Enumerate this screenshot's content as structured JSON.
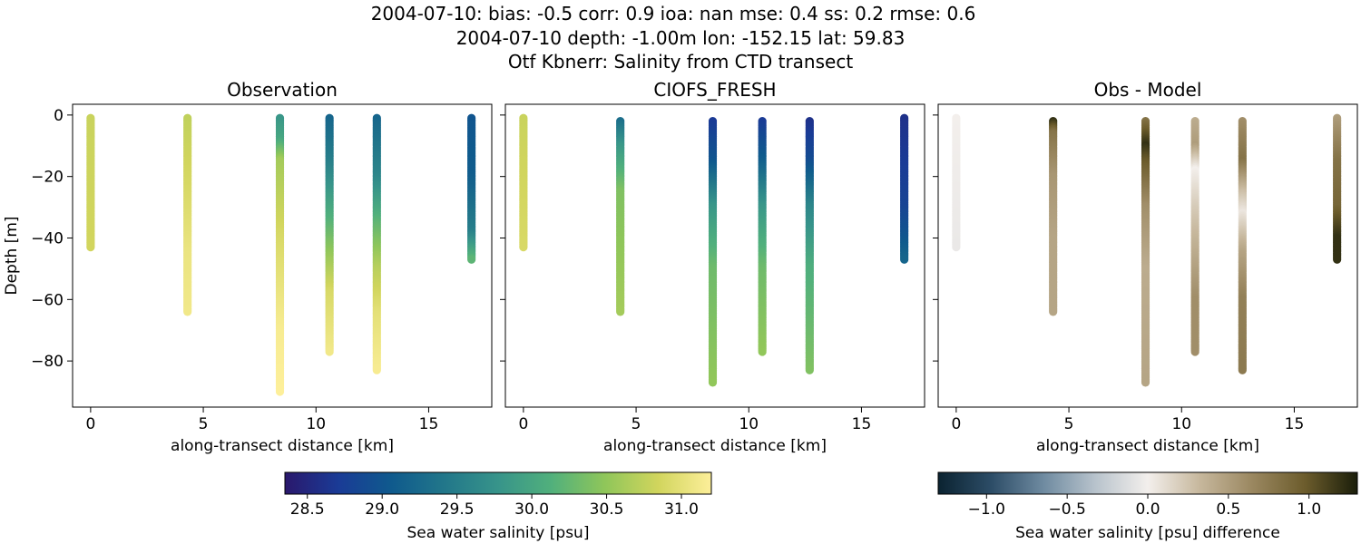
{
  "figure": {
    "title_lines": [
      "2004-07-10: bias: -0.5  corr: 0.9  ioa: nan  mse: 0.4  ss: 0.2  rmse: 0.6",
      "2004-07-10 depth: -1.00m lon: -152.15 lat: 59.83",
      "Otf Kbnerr: Salinity from CTD transect"
    ]
  },
  "chart_data": [
    {
      "type": "scatter",
      "title": "Observation",
      "xlabel": "along-transect distance [km]",
      "ylabel": "Depth [m]",
      "xlim": [
        -0.8,
        17.8
      ],
      "ylim": [
        -95,
        3.5
      ],
      "xticks": [
        0,
        5,
        10,
        15
      ],
      "yticks": [
        0,
        -20,
        -40,
        -60,
        -80
      ],
      "colorbar": "salinity",
      "profiles": [
        {
          "x": 0.0,
          "top": -1,
          "bottom": -43,
          "values": [
            [
              -1,
              30.8
            ],
            [
              -43,
              30.85
            ]
          ]
        },
        {
          "x": 4.3,
          "top": -1,
          "bottom": -64,
          "values": [
            [
              -1,
              30.75
            ],
            [
              -25,
              30.9
            ],
            [
              -45,
              31.05
            ],
            [
              -64,
              31.1
            ]
          ]
        },
        {
          "x": 8.4,
          "top": -1,
          "bottom": -90,
          "values": [
            [
              -1,
              29.8
            ],
            [
              -8,
              30.0
            ],
            [
              -15,
              30.6
            ],
            [
              -40,
              30.9
            ],
            [
              -70,
              31.15
            ],
            [
              -90,
              31.2
            ]
          ]
        },
        {
          "x": 10.6,
          "top": -1,
          "bottom": -77,
          "values": [
            [
              -1,
              29.2
            ],
            [
              -15,
              29.5
            ],
            [
              -30,
              30.0
            ],
            [
              -45,
              30.5
            ],
            [
              -58,
              30.9
            ],
            [
              -77,
              31.1
            ]
          ]
        },
        {
          "x": 12.7,
          "top": -1,
          "bottom": -83,
          "values": [
            [
              -1,
              29.2
            ],
            [
              -20,
              29.6
            ],
            [
              -35,
              30.2
            ],
            [
              -50,
              30.7
            ],
            [
              -65,
              31.0
            ],
            [
              -83,
              31.15
            ]
          ]
        },
        {
          "x": 16.9,
          "top": -1,
          "bottom": -47,
          "values": [
            [
              -1,
              29.0
            ],
            [
              -20,
              29.1
            ],
            [
              -38,
              29.5
            ],
            [
              -47,
              30.2
            ]
          ]
        }
      ]
    },
    {
      "type": "scatter",
      "title": "CIOFS_FRESH",
      "xlabel": "along-transect distance [km]",
      "ylabel": "",
      "xlim": [
        -0.8,
        17.8
      ],
      "ylim": [
        -95,
        3.5
      ],
      "xticks": [
        0,
        5,
        10,
        15
      ],
      "yticks": [
        0,
        -20,
        -40,
        -60,
        -80
      ],
      "colorbar": "salinity",
      "profiles": [
        {
          "x": 0.0,
          "top": -1,
          "bottom": -43,
          "values": [
            [
              -1,
              30.8
            ],
            [
              -43,
              30.9
            ]
          ]
        },
        {
          "x": 4.3,
          "top": -2,
          "bottom": -64,
          "values": [
            [
              -2,
              29.3
            ],
            [
              -10,
              29.8
            ],
            [
              -25,
              30.4
            ],
            [
              -64,
              30.6
            ]
          ]
        },
        {
          "x": 8.4,
          "top": -2,
          "bottom": -87,
          "values": [
            [
              -2,
              28.7
            ],
            [
              -15,
              29.0
            ],
            [
              -30,
              29.8
            ],
            [
              -50,
              30.3
            ],
            [
              -87,
              30.5
            ]
          ]
        },
        {
          "x": 10.6,
          "top": -2,
          "bottom": -77,
          "values": [
            [
              -2,
              28.7
            ],
            [
              -15,
              29.1
            ],
            [
              -30,
              29.8
            ],
            [
              -50,
              30.3
            ],
            [
              -77,
              30.5
            ]
          ]
        },
        {
          "x": 12.7,
          "top": -2,
          "bottom": -83,
          "values": [
            [
              -2,
              28.6
            ],
            [
              -15,
              28.9
            ],
            [
              -30,
              29.6
            ],
            [
              -50,
              30.1
            ],
            [
              -83,
              30.4
            ]
          ]
        },
        {
          "x": 16.9,
          "top": -1,
          "bottom": -47,
          "values": [
            [
              -1,
              28.6
            ],
            [
              -30,
              28.8
            ],
            [
              -40,
              29.0
            ],
            [
              -47,
              29.2
            ]
          ]
        }
      ]
    },
    {
      "type": "scatter",
      "title": "Obs - Model",
      "xlabel": "along-transect distance [km]",
      "ylabel": "",
      "xlim": [
        -0.8,
        17.8
      ],
      "ylim": [
        -95,
        3.5
      ],
      "xticks": [
        0,
        5,
        10,
        15
      ],
      "yticks": [
        0,
        -20,
        -40,
        -60,
        -80
      ],
      "colorbar": "difference",
      "profiles": [
        {
          "x": 0.0,
          "top": -1,
          "bottom": -43,
          "values": [
            [
              -1,
              0.0
            ],
            [
              -43,
              -0.05
            ]
          ]
        },
        {
          "x": 4.3,
          "top": -2,
          "bottom": -64,
          "values": [
            [
              -2,
              1.2
            ],
            [
              -6,
              0.8
            ],
            [
              -20,
              0.55
            ],
            [
              -40,
              0.45
            ],
            [
              -64,
              0.45
            ]
          ]
        },
        {
          "x": 8.4,
          "top": -2,
          "bottom": -87,
          "values": [
            [
              -2,
              0.8
            ],
            [
              -10,
              1.2
            ],
            [
              -15,
              1.0
            ],
            [
              -30,
              0.6
            ],
            [
              -50,
              0.4
            ],
            [
              -87,
              0.45
            ]
          ]
        },
        {
          "x": 10.6,
          "top": -2,
          "bottom": -77,
          "values": [
            [
              -2,
              0.4
            ],
            [
              -10,
              0.5
            ],
            [
              -18,
              0.0
            ],
            [
              -30,
              0.2
            ],
            [
              -45,
              0.4
            ],
            [
              -60,
              0.6
            ],
            [
              -77,
              0.6
            ]
          ]
        },
        {
          "x": 12.7,
          "top": -2,
          "bottom": -83,
          "values": [
            [
              -2,
              0.6
            ],
            [
              -15,
              0.8
            ],
            [
              -25,
              0.3
            ],
            [
              -32,
              0.05
            ],
            [
              -45,
              0.45
            ],
            [
              -60,
              0.7
            ],
            [
              -83,
              0.75
            ]
          ]
        },
        {
          "x": 16.9,
          "top": -1,
          "bottom": -47,
          "values": [
            [
              -1,
              0.5
            ],
            [
              -15,
              0.8
            ],
            [
              -30,
              0.9
            ],
            [
              -40,
              1.2
            ],
            [
              -47,
              1.2
            ]
          ]
        }
      ]
    }
  ],
  "colorbars": {
    "salinity": {
      "label": "Sea water salinity [psu]",
      "range": [
        28.35,
        31.2
      ],
      "ticks": [
        "28.5",
        "29.0",
        "29.5",
        "30.0",
        "30.5",
        "31.0"
      ],
      "tick_values": [
        28.5,
        29.0,
        29.5,
        30.0,
        30.5,
        31.0
      ],
      "colormap": "haline",
      "stops": [
        "#2a186c",
        "#1a3b96",
        "#0f5a8d",
        "#22778a",
        "#37948a",
        "#51b07c",
        "#8fc65a",
        "#d1d55d",
        "#fdef9a"
      ]
    },
    "difference": {
      "label": "Sea water salinity [psu] difference",
      "range": [
        -1.3,
        1.3
      ],
      "ticks": [
        "−1.0",
        "−0.5",
        "0.0",
        "0.5",
        "1.0"
      ],
      "tick_values": [
        -1.0,
        -0.5,
        0.0,
        0.5,
        1.0
      ],
      "colormap": "diff",
      "stops": [
        "#0b2331",
        "#2c4c66",
        "#6e8aa0",
        "#b8c3cc",
        "#f3efec",
        "#c6b79c",
        "#9a8760",
        "#6c5c2c",
        "#1a1e0a"
      ]
    }
  }
}
